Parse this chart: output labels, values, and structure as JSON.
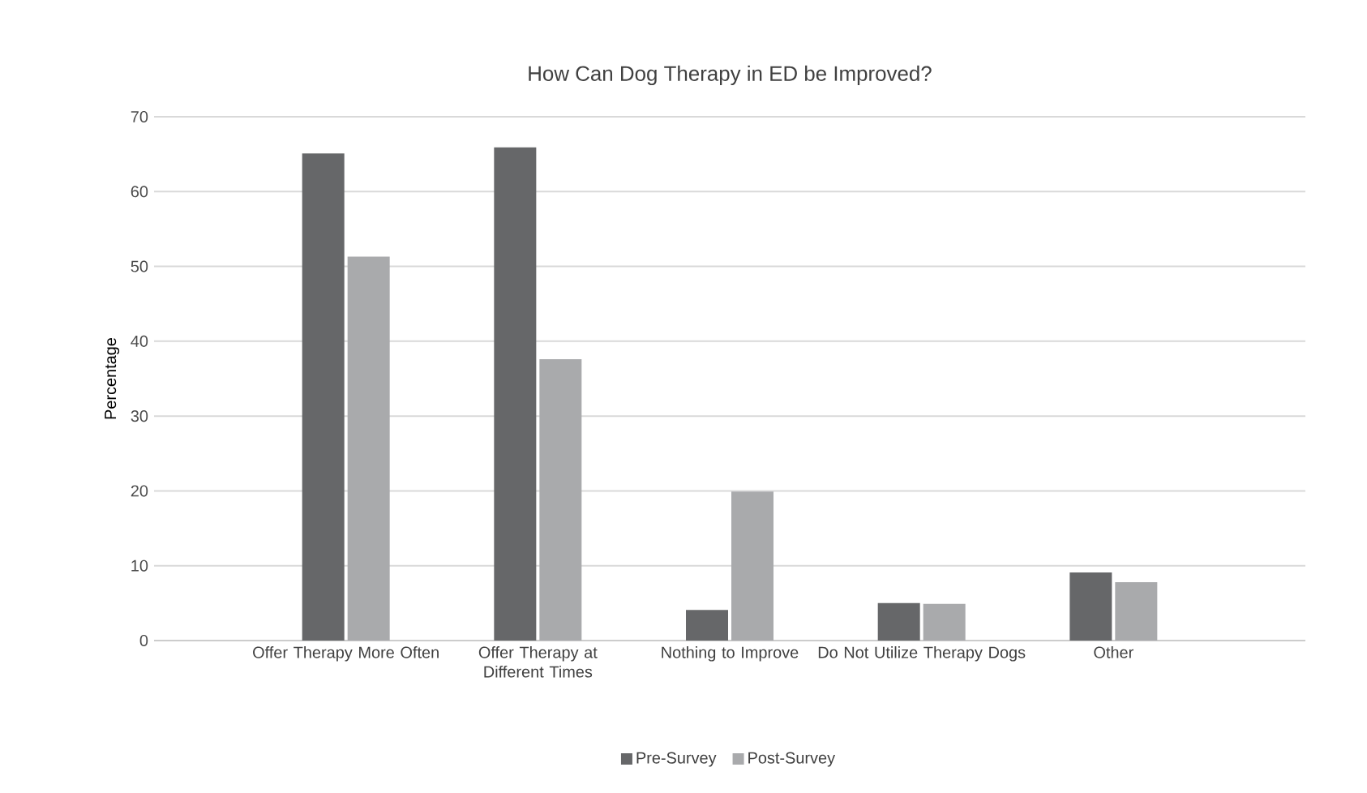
{
  "chart_data": {
    "type": "bar",
    "title": "How Can Dog Therapy in ED be Improved?",
    "ylabel": "Percentage",
    "categories": [
      "Offer Therapy More Often",
      "Offer Therapy at Different Times",
      "Nothing to Improve",
      "Do Not Utilize Therapy Dogs",
      "Other"
    ],
    "series": [
      {
        "name": "Pre-Survey",
        "color": "#666769",
        "values": [
          65.1,
          65.9,
          4.1,
          5,
          9.1
        ]
      },
      {
        "name": "Post-Survey",
        "color": "#a9aaac",
        "values": [
          51.3,
          37.6,
          19.9,
          4.9,
          7.8
        ]
      }
    ],
    "ylim": [
      0,
      70
    ],
    "yticks": [
      0,
      10,
      20,
      30,
      40,
      50,
      60,
      70
    ],
    "grid": "y",
    "legend": "bottom"
  }
}
